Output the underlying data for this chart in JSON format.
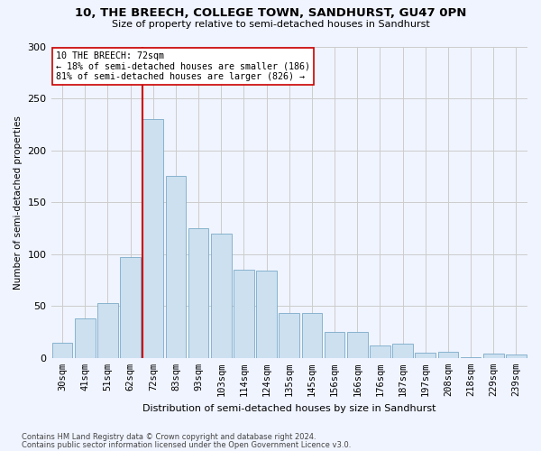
{
  "title": "10, THE BREECH, COLLEGE TOWN, SANDHURST, GU47 0PN",
  "subtitle": "Size of property relative to semi-detached houses in Sandhurst",
  "xlabel": "Distribution of semi-detached houses by size in Sandhurst",
  "ylabel": "Number of semi-detached properties",
  "bar_color": "#cce0f0",
  "bar_edge_color": "#7aaac8",
  "categories": [
    "30sqm",
    "41sqm",
    "51sqm",
    "62sqm",
    "72sqm",
    "83sqm",
    "93sqm",
    "103sqm",
    "114sqm",
    "124sqm",
    "135sqm",
    "145sqm",
    "156sqm",
    "166sqm",
    "176sqm",
    "187sqm",
    "197sqm",
    "208sqm",
    "218sqm",
    "229sqm",
    "239sqm"
  ],
  "values": [
    15,
    38,
    53,
    97,
    230,
    175,
    125,
    120,
    85,
    84,
    43,
    43,
    25,
    25,
    12,
    14,
    5,
    6,
    1,
    4,
    3
  ],
  "marker_bar_index": 4,
  "annotation_line1": "10 THE BREECH: 72sqm",
  "annotation_line2": "← 18% of semi-detached houses are smaller (186)",
  "annotation_line3": "81% of semi-detached houses are larger (826) →",
  "marker_line_color": "#cc0000",
  "annotation_box_facecolor": "#ffffff",
  "annotation_box_edgecolor": "#cc0000",
  "grid_color": "#cccccc",
  "bg_color": "#f0f4ff",
  "ylim": [
    0,
    300
  ],
  "yticks": [
    0,
    50,
    100,
    150,
    200,
    250,
    300
  ],
  "footer1": "Contains HM Land Registry data © Crown copyright and database right 2024.",
  "footer2": "Contains public sector information licensed under the Open Government Licence v3.0."
}
